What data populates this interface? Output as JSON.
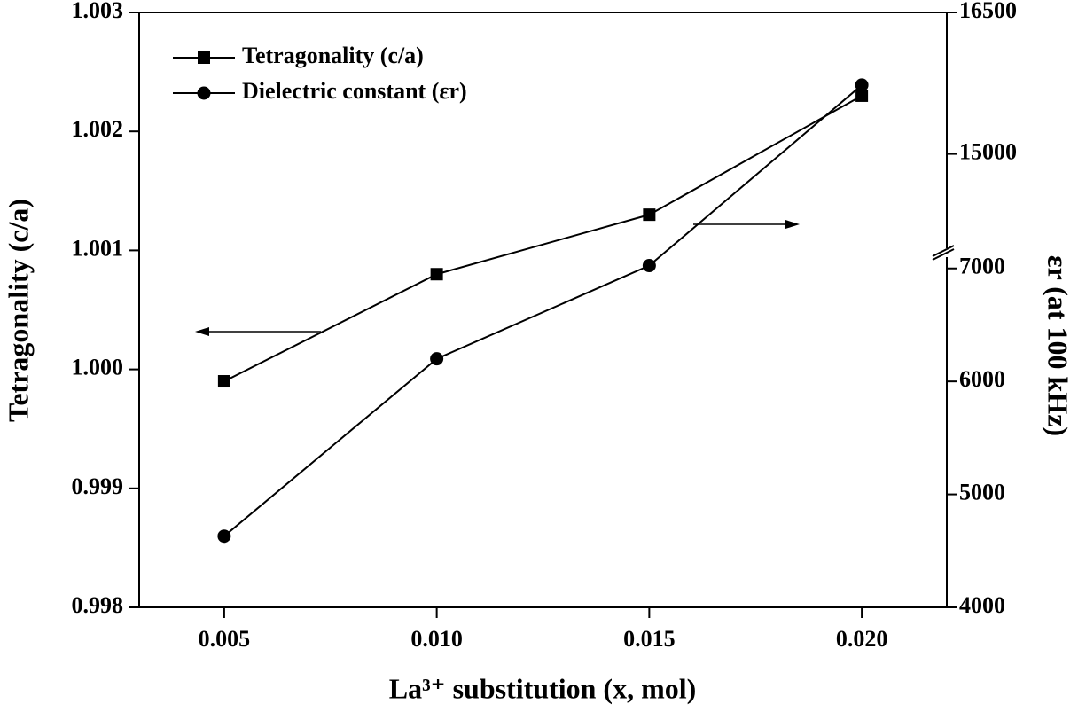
{
  "chart_data": {
    "type": "line",
    "x_label": "La³⁺ substitution (x, mol)",
    "y_label": "Tetragonality (c/a)",
    "y2_label": "εr (at 100 kHz)",
    "x": [
      0.005,
      0.01,
      0.015,
      0.02
    ],
    "xlim": [
      0.003,
      0.022
    ],
    "xticks": [
      0.005,
      {
        "value": 0.01,
        "label": "0.010"
      },
      0.015,
      {
        "value": 0.02,
        "label": "0.020"
      }
    ],
    "ylim": [
      0.998,
      1.003
    ],
    "yticks": [
      0.998,
      0.999,
      {
        "value": 1,
        "label": "1.000"
      },
      1.001,
      1.002,
      1.003
    ],
    "y2_segments": [
      {
        "lim": [
          4000,
          7100
        ],
        "ticks": [
          4000,
          5000,
          6000,
          7000
        ]
      },
      {
        "lim": [
          14000,
          16500
        ],
        "ticks": [
          15000,
          16500
        ]
      }
    ],
    "legend": "upper left",
    "series": [
      {
        "name": "Tetragonality (c/a)",
        "color": "#000000",
        "marker": "square",
        "values": [
          0.9999,
          1.0008,
          1.0013,
          1.0023
        ]
      },
      {
        "name": "Dielectric constant (εr)",
        "color": "#000000",
        "marker": "circle",
        "axis": "y2",
        "values": [
          4630,
          6200,
          7025,
          15730
        ]
      }
    ]
  }
}
